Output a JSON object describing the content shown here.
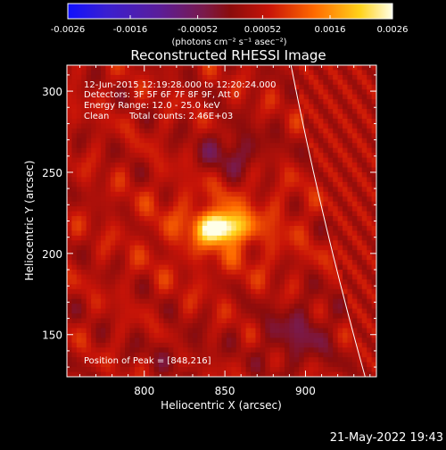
{
  "chart_data": {
    "type": "heatmap",
    "title": "Reconstructed RHESSI Image",
    "xlabel": "Heliocentric X (arcsec)",
    "ylabel": "Heliocentric Y (arcsec)",
    "xlim": [
      752,
      944
    ],
    "ylim": [
      124,
      316
    ],
    "x_ticks": [
      800,
      850,
      900
    ],
    "y_ticks": [
      150,
      200,
      250,
      300
    ],
    "colorbar": {
      "range": [
        -0.0026,
        0.0026
      ],
      "ticks": [
        "-0.0026",
        "-0.0016",
        "-0.00052",
        "0.00052",
        "0.0016",
        "0.0026"
      ],
      "unit_label": "(photons cm⁻² s⁻¹ asec⁻²)"
    },
    "annotations": {
      "time_range": "12-Jun-2015 12:19:28.000 to 12:20:24.000",
      "detectors": "Detectors: 3F 5F 6F 7F 8F 9F, Att 0",
      "energy": "Energy Range: 12.0 - 25.0 keV",
      "clean_label": "Clean",
      "total_counts": "Total counts: 2.46E+03",
      "peak": "Position of Peak = [848,216]"
    },
    "peak": {
      "x": 848,
      "y": 216
    },
    "limb": {
      "x_at_top": 891,
      "x_at_bottom": 937
    }
  },
  "footer": {
    "timestamp": "21-May-2022 19:43"
  }
}
